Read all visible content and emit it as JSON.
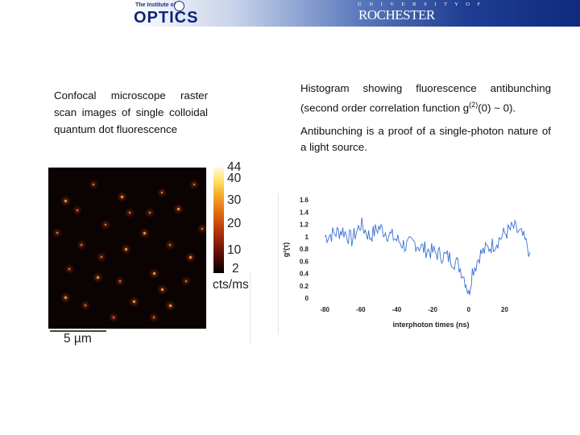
{
  "header": {
    "optics_small": "The Institute of",
    "optics_word": "OPTICS",
    "university_label": "U N I V E R S I T Y   O F",
    "university_name": "ROCHESTER"
  },
  "left_caption": "Confocal microscope raster scan images of single colloidal quantum dot fluorescence",
  "right_text": {
    "p1_prefix": "Histogram showing fluorescence antibunching (second order correlation function g",
    "p1_sup": "(2)",
    "p1_suffix": "(0) ~ 0).",
    "p2": "Antibunching is a proof of a single-photon nature of a light source."
  },
  "image": {
    "colorbar_ticks": [
      "44",
      "40",
      "30",
      "20",
      "10",
      "2"
    ],
    "colorbar_unit": "cts/ms",
    "scale_label": "5 µm"
  },
  "colors": {
    "banner_dark": "#0f2a7e",
    "line_color": "#3b6fd4"
  },
  "chart_data": {
    "type": "line",
    "title": "",
    "xlabel": "interphoton times (ns)",
    "ylabel": "g²(τ)",
    "xlim": [
      -85,
      35
    ],
    "ylim": [
      0,
      1.6
    ],
    "xticks": [
      "-80",
      "-60",
      "-40",
      "-20",
      "0",
      "20"
    ],
    "yticks": [
      "0",
      "0.2",
      "0.4",
      "0.6",
      "0.8",
      "1",
      "1.2",
      "1.4",
      "1.6"
    ],
    "grid": false,
    "series": [
      {
        "x": [
          -80,
          -75,
          -70,
          -65,
          -60,
          -55,
          -50,
          -45,
          -40,
          -35,
          -30,
          -25,
          -20,
          -15,
          -10,
          -6,
          -4,
          -2,
          -1,
          0,
          1,
          2,
          4,
          6,
          10,
          15,
          20,
          25,
          30,
          34
        ],
        "y": [
          1.0,
          1.05,
          1.1,
          0.95,
          1.2,
          1.0,
          1.15,
          1.05,
          0.95,
          0.85,
          0.9,
          0.8,
          0.75,
          0.7,
          0.65,
          0.55,
          0.45,
          0.3,
          0.2,
          0.05,
          0.25,
          0.45,
          0.55,
          0.7,
          0.8,
          0.9,
          1.05,
          1.15,
          1.0,
          0.75
        ]
      }
    ]
  }
}
